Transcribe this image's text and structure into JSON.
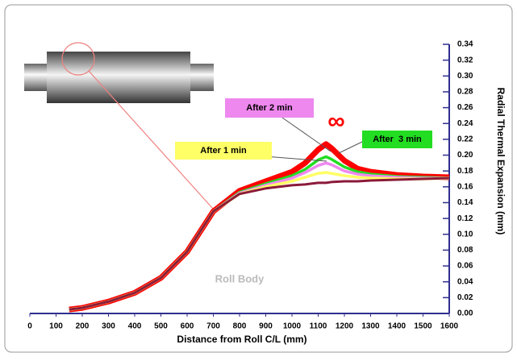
{
  "chart_data": {
    "type": "line",
    "x_label": "Distance from Roll C/L (mm)",
    "y_label": "Radial Thermal Expansion (mm)",
    "annotation": "Roll Body",
    "x": [
      150,
      200,
      300,
      400,
      500,
      600,
      700,
      800,
      900,
      1000,
      1050,
      1100,
      1130,
      1150,
      1200,
      1250,
      1300,
      1400,
      1500,
      1600
    ],
    "series": [
      {
        "name": "∞",
        "color": "#ff0000",
        "values": [
          0.005,
          0.007,
          0.015,
          0.026,
          0.045,
          0.078,
          0.129,
          0.155,
          0.167,
          0.179,
          0.19,
          0.207,
          0.214,
          0.209,
          0.193,
          0.183,
          0.179,
          0.175,
          0.173,
          0.172
        ]
      },
      {
        "name": "After  3 min",
        "color": "#22dd22",
        "values": [
          0.005,
          0.007,
          0.015,
          0.026,
          0.045,
          0.078,
          0.129,
          0.153,
          0.164,
          0.174,
          0.182,
          0.194,
          0.198,
          0.195,
          0.185,
          0.179,
          0.176,
          0.173,
          0.172,
          0.171
        ]
      },
      {
        "name": "After 2 min",
        "color": "#ee88ee",
        "values": [
          0.005,
          0.007,
          0.015,
          0.026,
          0.045,
          0.078,
          0.129,
          0.152,
          0.162,
          0.171,
          0.178,
          0.187,
          0.19,
          0.188,
          0.18,
          0.176,
          0.174,
          0.172,
          0.171,
          0.171
        ]
      },
      {
        "name": "After 1 min",
        "color": "#ffff66",
        "values": [
          0.005,
          0.007,
          0.015,
          0.026,
          0.045,
          0.078,
          0.129,
          0.151,
          0.16,
          0.167,
          0.172,
          0.177,
          0.178,
          0.177,
          0.174,
          0.172,
          0.171,
          0.17,
          0.17,
          0.171
        ]
      },
      {
        "color": "#8b1a3a",
        "values": [
          0.005,
          0.007,
          0.015,
          0.026,
          0.045,
          0.078,
          0.129,
          0.151,
          0.158,
          0.162,
          0.163,
          0.165,
          0.165,
          0.166,
          0.167,
          0.167,
          0.168,
          0.169,
          0.17,
          0.171
        ]
      }
    ],
    "xlim": [
      0,
      1600
    ],
    "xticks": [
      0,
      100,
      200,
      300,
      400,
      500,
      600,
      700,
      800,
      900,
      1000,
      1100,
      1200,
      1300,
      1400,
      1500,
      1600
    ],
    "ylim": [
      0,
      0.34
    ],
    "yticks": [
      {
        "value": 0,
        "label": "0.00"
      },
      {
        "value": 0.02,
        "label": "0.02"
      },
      {
        "value": 0.04,
        "label": "0.04"
      },
      {
        "value": 0.06,
        "label": "0.06"
      },
      {
        "value": 0.08,
        "label": "0.08"
      },
      {
        "value": 0.1,
        "label": "0.10"
      },
      {
        "value": 0.12,
        "label": "0.12"
      },
      {
        "value": 0.14,
        "label": "0.14"
      },
      {
        "value": 0.16,
        "label": "0.16"
      },
      {
        "value": 0.18,
        "label": "0.18"
      },
      {
        "value": 0.2,
        "label": "0.20"
      },
      {
        "value": 0.22,
        "label": "0.22"
      },
      {
        "value": 0.24,
        "label": "0.24"
      },
      {
        "value": 0.26,
        "label": "0.26"
      },
      {
        "value": 0.28,
        "label": "0.28"
      },
      {
        "value": 0.3,
        "label": "0.30"
      },
      {
        "value": 0.32,
        "label": "0.32"
      },
      {
        "value": 0.34,
        "label": "0.34"
      }
    ]
  }
}
